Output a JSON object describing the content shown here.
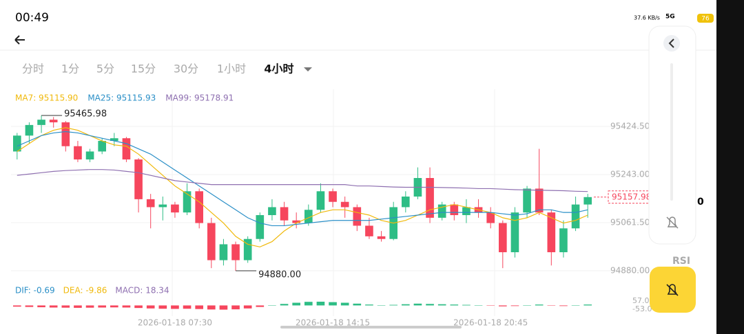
{
  "status_bar": {
    "time": "00:49",
    "speed": "37.6 KB/s",
    "network": "5G",
    "battery": "76"
  },
  "tabs": [
    "分时",
    "1分",
    "5分",
    "15分",
    "30分",
    "1小时",
    "4小时"
  ],
  "side_label": "RSI",
  "cut_label": "0",
  "chart_data": {
    "type": "candlestick",
    "ylim": [
      94851.5,
      95486.7
    ],
    "yticks": [
      {
        "value": 95424.5,
        "label": "95424.50"
      },
      {
        "value": 95243,
        "label": "95243.00"
      },
      {
        "value": 95061.5,
        "label": "95061.50"
      },
      {
        "value": 94880,
        "label": "94880.00"
      }
    ],
    "xticks": [
      {
        "value": 13,
        "label": "2026-01-18 07:30"
      },
      {
        "value": 26,
        "label": "2026-01-18 14:15"
      },
      {
        "value": 39,
        "label": "2026-01-18 20:45"
      }
    ],
    "up_color": "#2ebd85",
    "down_color": "#f6465d",
    "candles": [
      [
        95330,
        95400,
        95300,
        95390
      ],
      [
        95390,
        95440,
        95360,
        95430
      ],
      [
        95430,
        95465.98,
        95400,
        95450
      ],
      [
        95450,
        95460,
        95420,
        95440
      ],
      [
        95440,
        95445,
        95330,
        95350
      ],
      [
        95350,
        95370,
        95290,
        95300
      ],
      [
        95300,
        95340,
        95290,
        95330
      ],
      [
        95330,
        95380,
        95320,
        95370
      ],
      [
        95370,
        95400,
        95350,
        95380
      ],
      [
        95380,
        95385,
        95290,
        95300
      ],
      [
        95300,
        95305,
        95100,
        95150
      ],
      [
        95150,
        95170,
        95040,
        95120
      ],
      [
        95120,
        95160,
        95070,
        95130
      ],
      [
        95130,
        95140,
        95080,
        95100
      ],
      [
        95100,
        95210,
        95090,
        95180
      ],
      [
        95180,
        95190,
        95040,
        95060
      ],
      [
        95060,
        95080,
        94890,
        94920
      ],
      [
        94920,
        95000,
        94900,
        94980
      ],
      [
        94980,
        94990,
        94880,
        94920
      ],
      [
        94920,
        95010,
        94910,
        95000
      ],
      [
        95000,
        95100,
        94990,
        95090
      ],
      [
        95090,
        95150,
        95070,
        95120
      ],
      [
        95120,
        95140,
        95050,
        95070
      ],
      [
        95070,
        95100,
        95040,
        95060
      ],
      [
        95060,
        95130,
        95050,
        95110
      ],
      [
        95110,
        95210,
        95100,
        95180
      ],
      [
        95180,
        95190,
        95120,
        95140
      ],
      [
        95140,
        95160,
        95080,
        95120
      ],
      [
        95120,
        95130,
        95030,
        95050
      ],
      [
        95050,
        95080,
        95000,
        95010
      ],
      [
        95010,
        95030,
        94990,
        95000
      ],
      [
        95000,
        95140,
        94995,
        95120
      ],
      [
        95120,
        95180,
        95100,
        95160
      ],
      [
        95160,
        95270,
        95150,
        95230
      ],
      [
        95230,
        95270,
        95060,
        95080
      ],
      [
        95080,
        95140,
        95070,
        95130
      ],
      [
        95130,
        95140,
        95070,
        95090
      ],
      [
        95090,
        95150,
        95060,
        95120
      ],
      [
        95120,
        95150,
        95080,
        95100
      ],
      [
        95100,
        95120,
        95040,
        95060
      ],
      [
        95060,
        95070,
        94890,
        94950
      ],
      [
        94950,
        95120,
        94930,
        95100
      ],
      [
        95100,
        95200,
        95080,
        95190
      ],
      [
        95190,
        95340,
        95090,
        95100
      ],
      [
        95100,
        95110,
        94900,
        94950
      ],
      [
        94950,
        95070,
        94930,
        95040
      ],
      [
        95040,
        95160,
        95030,
        95130
      ],
      [
        95130,
        95170,
        95080,
        95157.98
      ]
    ],
    "max_label": "95465.98",
    "min_label": "94880.00",
    "last_label": "95157.98",
    "max_index": 2,
    "min_index": 18,
    "series": [
      {
        "name": "MA7: 95115.90",
        "color": "#f0b90b",
        "values": [
          95330,
          95360,
          95390,
          95410,
          95420,
          95410,
          95390,
          95370,
          95355,
          95350,
          95320,
          95280,
          95240,
          95200,
          95170,
          95140,
          95100,
          95060,
          95010,
          94980,
          94970,
          94990,
          95030,
          95060,
          95080,
          95100,
          95110,
          95110,
          95100,
          95090,
          95070,
          95060,
          95070,
          95090,
          95110,
          95120,
          95130,
          95120,
          95110,
          95100,
          95080,
          95070,
          95080,
          95100,
          95080,
          95060,
          95070,
          95090
        ]
      },
      {
        "name": "MA25: 95115.93",
        "color": "#2a8fc7",
        "values": [
          95350,
          95370,
          95390,
          95400,
          95405,
          95400,
          95390,
          95380,
          95370,
          95360,
          95340,
          95320,
          95290,
          95260,
          95230,
          95200,
          95170,
          95140,
          95110,
          95080,
          95060,
          95050,
          95050,
          95055,
          95060,
          95065,
          95070,
          95070,
          95070,
          95070,
          95075,
          95080,
          95085,
          95090,
          95095,
          95100,
          95100,
          95100,
          95100,
          95100,
          95095,
          95090,
          95095,
          95110,
          95110,
          95100,
          95100,
          95110
        ]
      },
      {
        "name": "MA99: 95178.91",
        "color": "#8e6fb0",
        "values": [
          95240,
          95245,
          95250,
          95255,
          95258,
          95260,
          95262,
          95262,
          95260,
          95255,
          95250,
          95240,
          95230,
          95220,
          95215,
          95210,
          95205,
          95205,
          95205,
          95205,
          95205,
          95205,
          95205,
          95205,
          95205,
          95205,
          95205,
          95205,
          95200,
          95200,
          95198,
          95196,
          95195,
          95195,
          95195,
          95194,
          95193,
          95192,
          95190,
          95190,
          95188,
          95186,
          95185,
          95184,
          95183,
          95182,
          95180,
          95179
        ]
      }
    ],
    "macd": {
      "labels": [
        {
          "text": "DIF: -0.69",
          "color": "#2a8fc7"
        },
        {
          "text": "DEA: -9.86",
          "color": "#f0b90b"
        },
        {
          "text": "MACD: 18.34",
          "color": "#8e6fb0"
        }
      ],
      "ylim": [
        -53,
        57
      ],
      "yticks": [
        {
          "value": 57,
          "label": "57.0"
        },
        {
          "value": -53,
          "label": "-53.0"
        }
      ],
      "values": [
        -8,
        -10,
        -12,
        -14,
        -15,
        -16,
        -15,
        -14,
        -13,
        -14,
        -17,
        -20,
        -22,
        -23,
        -22,
        -24,
        -27,
        -28,
        -26,
        -20,
        -10,
        2,
        10,
        18,
        24,
        25,
        22,
        18,
        12,
        6,
        2,
        4,
        8,
        12,
        10,
        8,
        6,
        4,
        2,
        -2,
        -6,
        -4,
        2,
        6,
        -2,
        -4,
        2,
        6
      ]
    }
  }
}
